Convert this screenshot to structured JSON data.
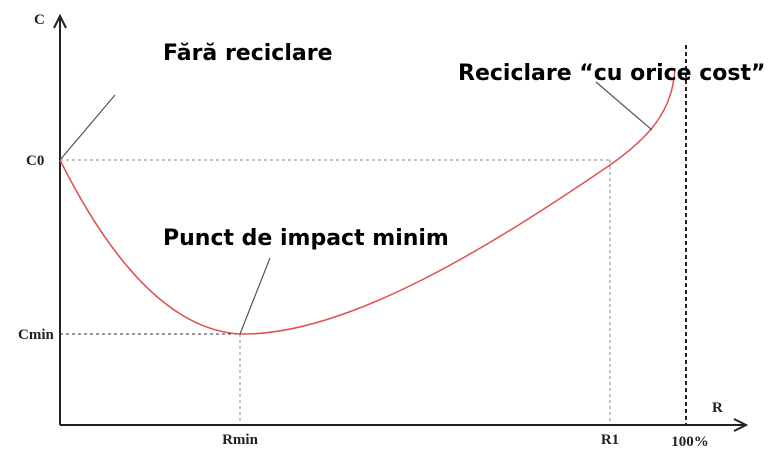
{
  "axes": {
    "y_label": "C",
    "x_label": "R",
    "y_marks": [
      "C0",
      "Cmin"
    ],
    "x_marks": [
      "Rmin",
      "R1",
      "100%"
    ]
  },
  "annotations": [
    "Fără reciclare",
    "Reciclare “cu orice cost”",
    "Punct de impact minim"
  ]
}
